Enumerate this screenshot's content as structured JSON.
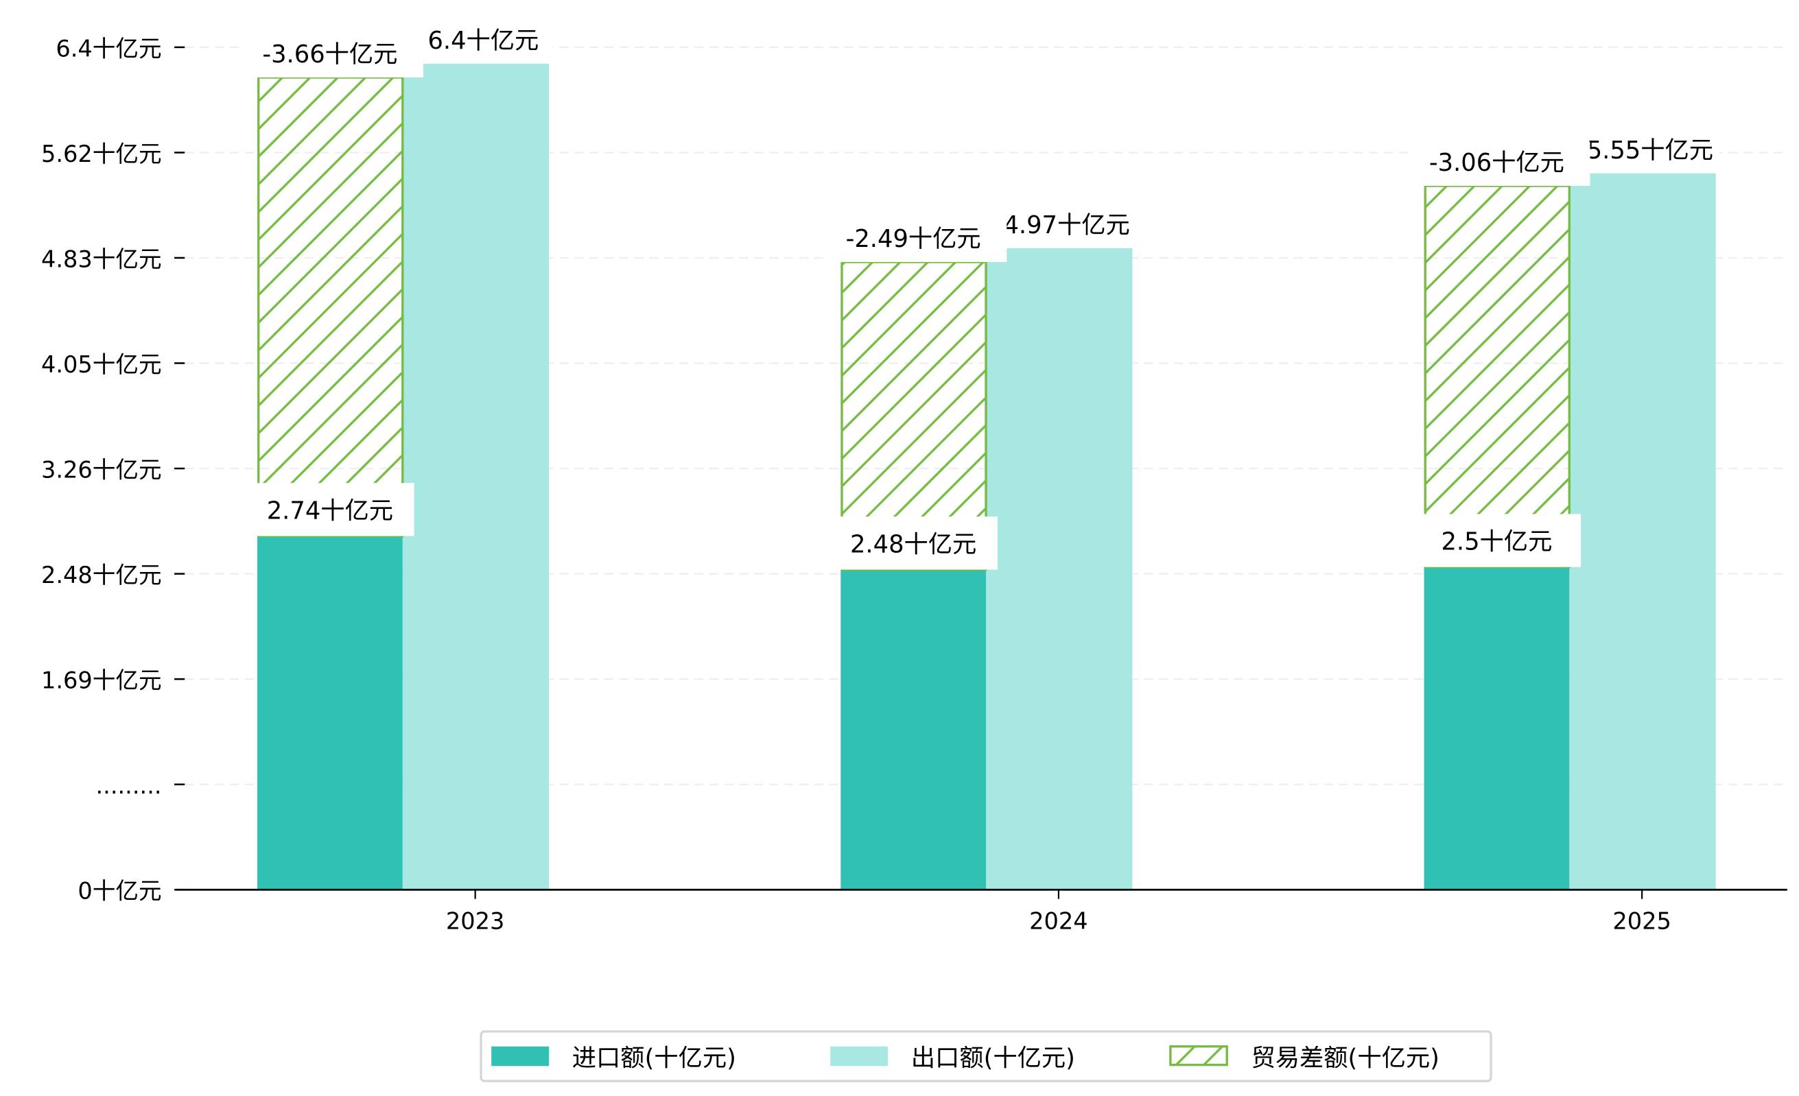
{
  "chart_data": {
    "type": "bar",
    "title": "",
    "xlabel": "",
    "ylabel": "",
    "categories": [
      "2023",
      "2024",
      "2025"
    ],
    "series": [
      {
        "name": "进口额(十亿元)",
        "values": [
          2.74,
          2.48,
          2.5
        ],
        "labels": [
          "2.74十亿元",
          "2.48十亿元",
          "2.5十亿元"
        ],
        "color": "#30c0b4"
      },
      {
        "name": "出口额(十亿元)",
        "values": [
          6.4,
          4.97,
          5.55
        ],
        "labels": [
          "6.4十亿元",
          "4.97十亿元",
          "5.55十亿元"
        ],
        "color": "#a8e8e2"
      },
      {
        "name": "贸易差额(十亿元)",
        "values": [
          -3.66,
          -2.49,
          -3.06
        ],
        "labels": [
          "-3.66十亿元",
          "-2.49十亿元",
          "-3.06十亿元"
        ],
        "color": "#76bc43",
        "style": "hatched, stacked on imports"
      }
    ],
    "yticks": [
      "0十亿元",
      ".........",
      "1.69十亿元",
      "2.48十亿元",
      "3.26十亿元",
      "4.05十亿元",
      "4.83十亿元",
      "5.62十亿元",
      "6.4十亿元"
    ],
    "ylim": [
      0,
      6.4
    ],
    "grid": "horizontal dashed",
    "legend": "bottom-center"
  }
}
